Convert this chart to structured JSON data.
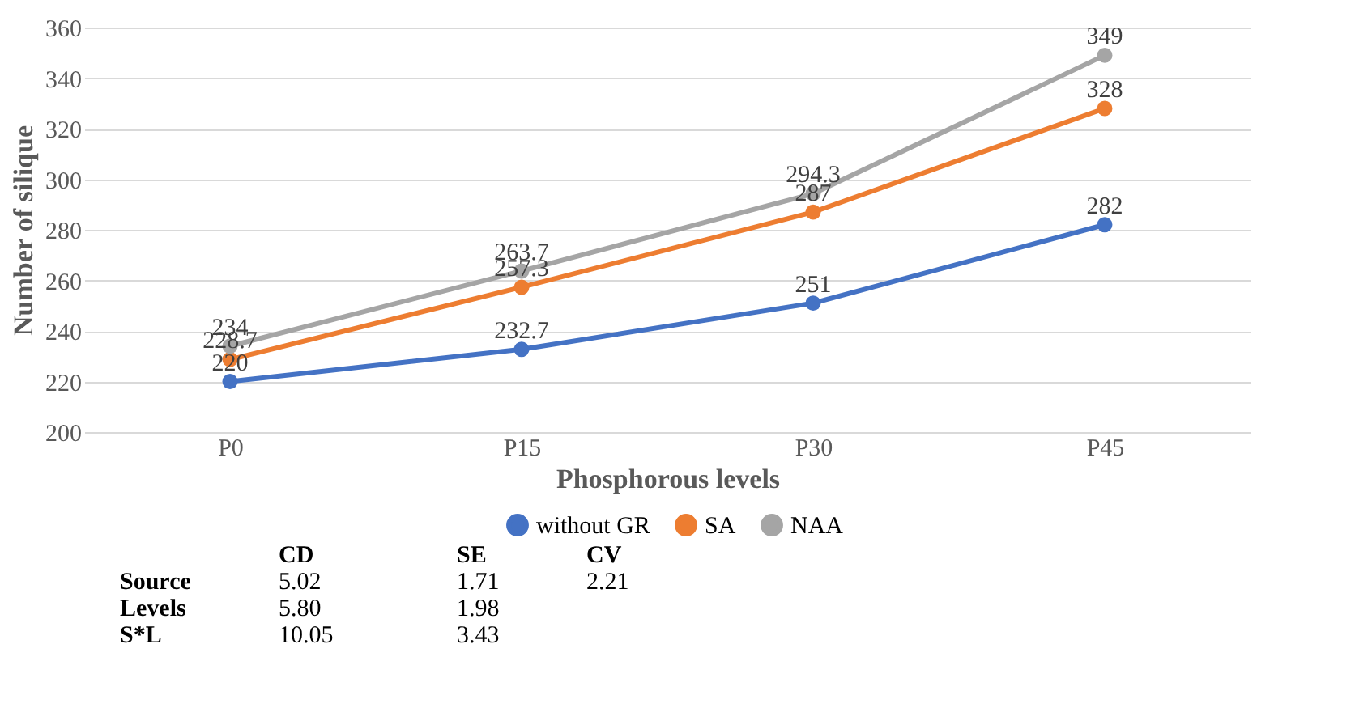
{
  "chart_data": {
    "type": "line",
    "xlabel": "Phosphorous levels",
    "ylabel": "Number of silique",
    "categories": [
      "P0",
      "P15",
      "P30",
      "P45"
    ],
    "series": [
      {
        "name": "without GR",
        "color": "#4472c4",
        "values": [
          220,
          232.7,
          251,
          282
        ]
      },
      {
        "name": "SA",
        "color": "#ed7d31",
        "values": [
          228.7,
          257.3,
          287,
          328
        ]
      },
      {
        "name": "NAA",
        "color": "#a5a5a5",
        "values": [
          234,
          263.7,
          294.3,
          349
        ]
      }
    ],
    "ylim": [
      200,
      360
    ],
    "yticks": [
      200,
      220,
      240,
      260,
      280,
      300,
      320,
      340,
      360
    ],
    "grid": "y",
    "legend": "bottom",
    "marker": "circle",
    "line_style": "solid",
    "data_labels": true,
    "annotations": [
      "CD",
      "SE",
      "CV",
      "Source",
      "5.02",
      "1.71",
      "2.21",
      "Levels",
      "5.80",
      "1.98",
      "S*L",
      "10.05",
      "3.43"
    ]
  }
}
